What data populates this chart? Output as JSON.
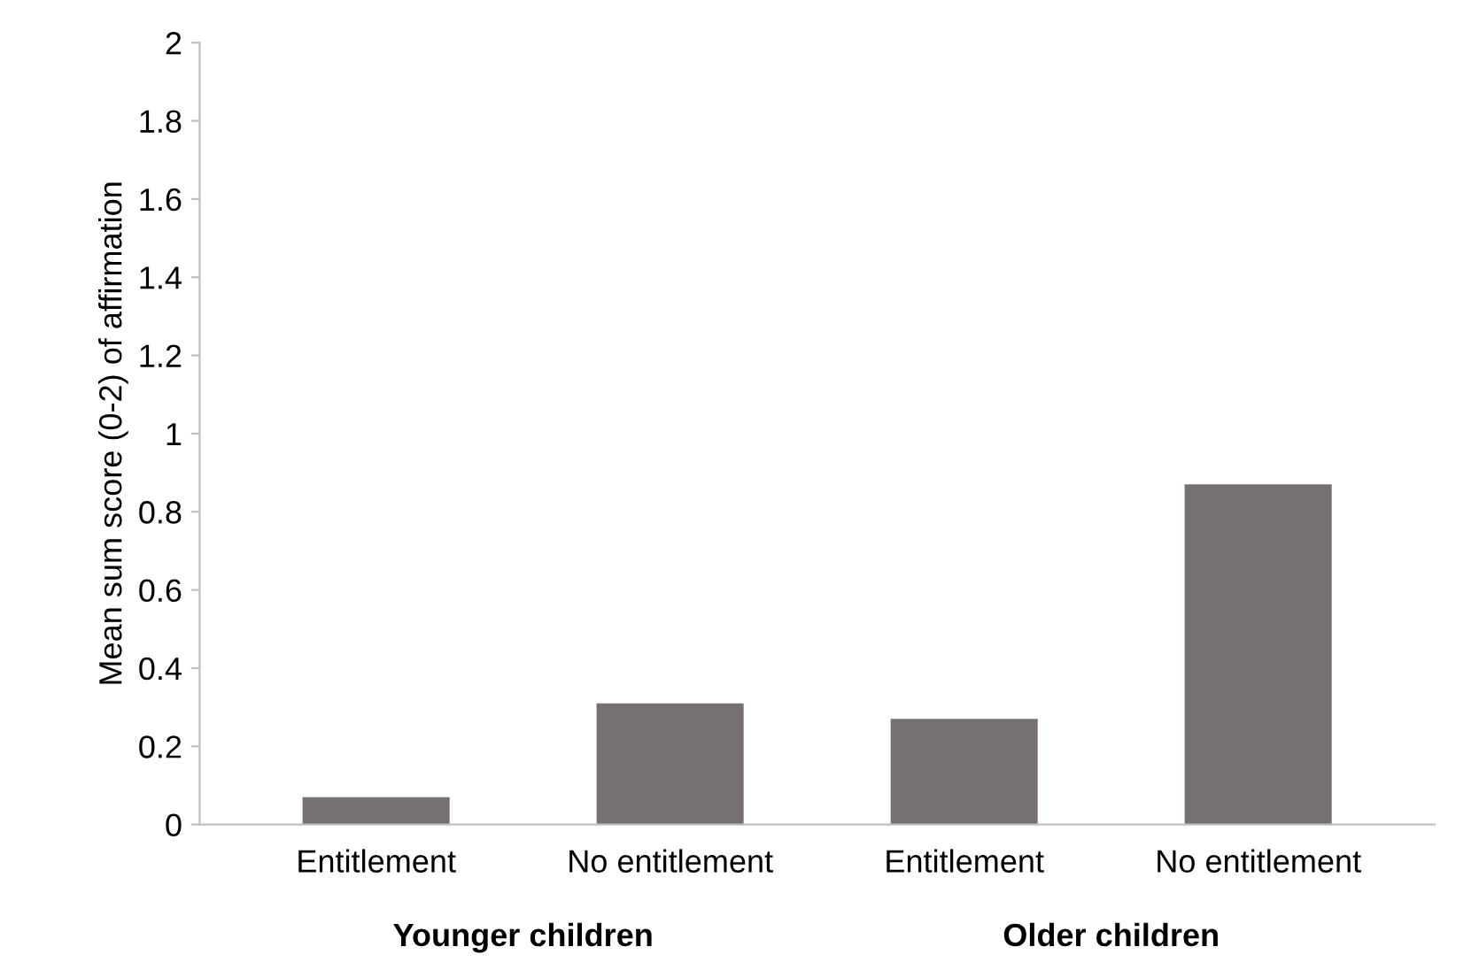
{
  "chart_data": {
    "type": "bar",
    "ylabel": "Mean sum score (0-2) of affirmation",
    "categories": [
      "Entitlement",
      "No entitlement",
      "Entitlement",
      "No entitlement"
    ],
    "values": [
      0.07,
      0.31,
      0.27,
      0.87
    ],
    "color": "#767070",
    "ylim": [
      0,
      2
    ],
    "yticks": [
      0,
      0.2,
      0.4,
      0.6,
      0.8,
      1,
      1.2,
      1.4,
      1.6,
      1.8,
      2
    ],
    "grid": false,
    "legend": false,
    "annotations": [
      "Younger children",
      "Older children"
    ]
  }
}
